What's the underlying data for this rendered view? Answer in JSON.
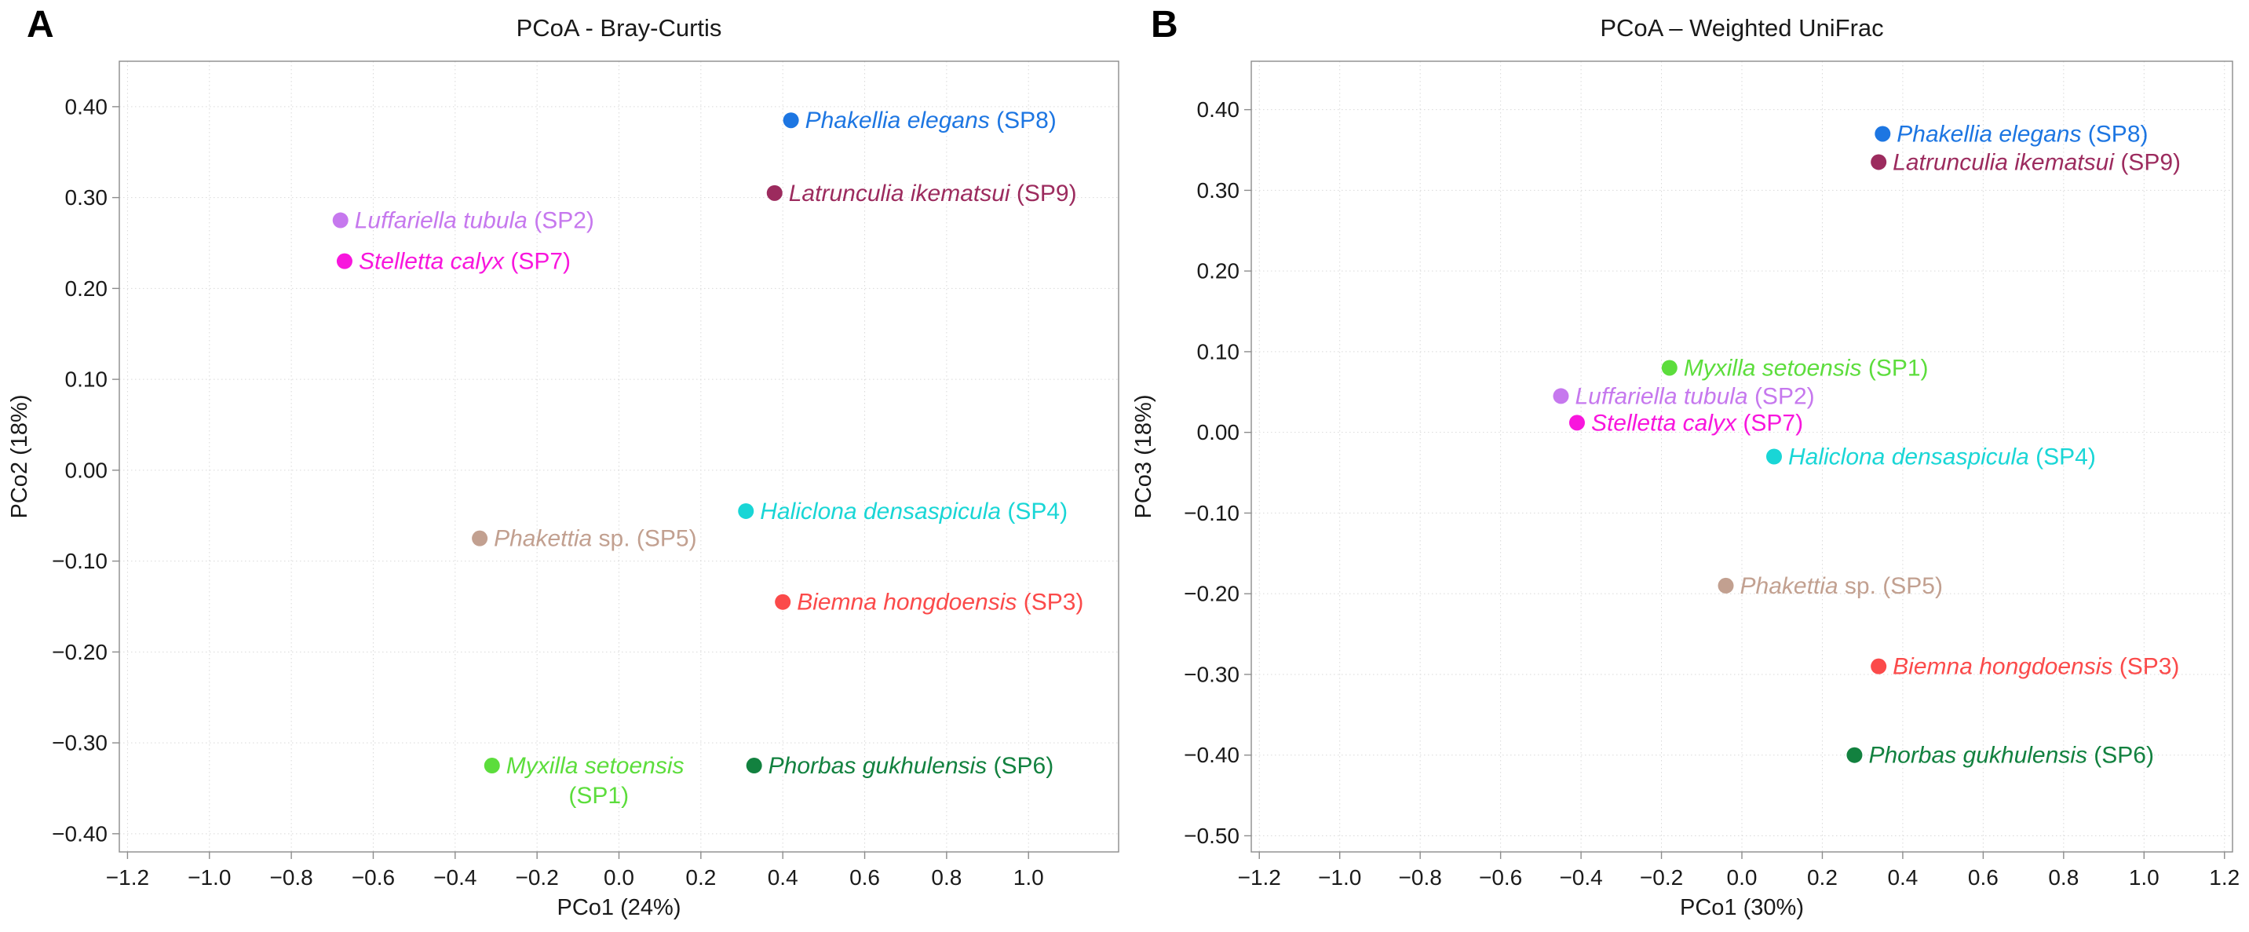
{
  "figure": {
    "panels": [
      {
        "corner_label": "A",
        "title": "PCoA - Bray-Curtis"
      },
      {
        "corner_label": "B",
        "title": "PCoA – Weighted UniFrac"
      }
    ]
  },
  "chart_data": [
    {
      "type": "scatter",
      "panel": "A",
      "title": "PCoA - Bray-Curtis",
      "xlabel": "PCo1 (24%)",
      "ylabel": "PCo2 (18%)",
      "xlim": [
        -1.22,
        1.22
      ],
      "ylim": [
        -0.42,
        0.45
      ],
      "xticks": [
        -1.2,
        -1.0,
        -0.8,
        -0.6,
        -0.4,
        -0.2,
        0.0,
        0.2,
        0.4,
        0.6,
        0.8,
        1.0
      ],
      "xtick_labels": [
        "−1.2",
        "−1.0",
        "−0.8",
        "−0.6",
        "−0.4",
        "−0.2",
        "0.0",
        "0.2",
        "0.4",
        "0.6",
        "0.8",
        "1.0"
      ],
      "yticks": [
        -0.4,
        -0.3,
        -0.2,
        -0.1,
        0.0,
        0.1,
        0.2,
        0.3,
        0.4
      ],
      "ytick_labels": [
        "−0.40",
        "−0.30",
        "−0.20",
        "−0.10",
        "0.00",
        "0.10",
        "0.20",
        "0.30",
        "0.40"
      ],
      "grid": true,
      "legend": "none",
      "points": [
        {
          "label_italic": "Phakellia elegans",
          "label_roman": " (SP8)",
          "x": 0.42,
          "y": 0.385,
          "color": "#1d76e2"
        },
        {
          "label_italic": "Latrunculia ikematsui",
          "label_roman": " (SP9)",
          "x": 0.38,
          "y": 0.305,
          "color": "#9c2b5e"
        },
        {
          "label_italic": "Luffariella tubula",
          "label_roman": " (SP2)",
          "x": -0.68,
          "y": 0.275,
          "color": "#c678ee"
        },
        {
          "label_italic": "Stelletta calyx",
          "label_roman": " (SP7)",
          "x": -0.67,
          "y": 0.23,
          "color": "#f816dd"
        },
        {
          "label_italic": "Haliclona densaspicula",
          "label_roman": " (SP4)",
          "x": 0.31,
          "y": -0.045,
          "color": "#19d6d6"
        },
        {
          "label_italic": "Phakettia",
          "label_roman": " sp. (SP5)",
          "x": -0.34,
          "y": -0.075,
          "color": "#c2a090"
        },
        {
          "label_italic": "Biemna hongdoensis",
          "label_roman": " (SP3)",
          "x": 0.4,
          "y": -0.145,
          "color": "#fb4a4a"
        },
        {
          "label_italic": "Myxilla setoensis",
          "label_roman": "(SP1)",
          "x": -0.31,
          "y": -0.325,
          "color": "#5cdd3c",
          "two_line": true
        },
        {
          "label_italic": "Phorbas gukhulensis",
          "label_roman": " (SP6)",
          "x": 0.33,
          "y": -0.325,
          "color": "#12813f"
        }
      ]
    },
    {
      "type": "scatter",
      "panel": "B",
      "title": "PCoA – Weighted UniFrac",
      "xlabel": "PCo1 (30%)",
      "ylabel": "PCo3 (18%)",
      "xlim": [
        -1.22,
        1.22
      ],
      "ylim": [
        -0.52,
        0.46
      ],
      "xticks": [
        -1.2,
        -1.0,
        -0.8,
        -0.6,
        -0.4,
        -0.2,
        0.0,
        0.2,
        0.4,
        0.6,
        0.8,
        1.0,
        1.2
      ],
      "xtick_labels": [
        "−1.2",
        "−1.0",
        "−0.8",
        "−0.6",
        "−0.4",
        "−0.2",
        "0.0",
        "0.2",
        "0.4",
        "0.6",
        "0.8",
        "1.0",
        "1.2"
      ],
      "yticks": [
        -0.5,
        -0.4,
        -0.3,
        -0.2,
        -0.1,
        0.0,
        0.1,
        0.2,
        0.3,
        0.4
      ],
      "ytick_labels": [
        "−0.50",
        "−0.40",
        "−0.30",
        "−0.20",
        "−0.10",
        "0.00",
        "0.10",
        "0.20",
        "0.30",
        "0.40"
      ],
      "grid": true,
      "legend": "none",
      "points": [
        {
          "label_italic": "Phakellia elegans",
          "label_roman": " (SP8)",
          "x": 0.35,
          "y": 0.37,
          "color": "#1d76e2"
        },
        {
          "label_italic": "Latrunculia ikematsui",
          "label_roman": " (SP9)",
          "x": 0.34,
          "y": 0.335,
          "color": "#9c2b5e"
        },
        {
          "label_italic": "Myxilla setoensis",
          "label_roman": " (SP1)",
          "x": -0.18,
          "y": 0.08,
          "color": "#5cdd3c"
        },
        {
          "label_italic": "Luffariella tubula",
          "label_roman": " (SP2)",
          "x": -0.45,
          "y": 0.045,
          "color": "#c678ee"
        },
        {
          "label_italic": "Stelletta calyx",
          "label_roman": " (SP7)",
          "x": -0.41,
          "y": 0.012,
          "color": "#f816dd"
        },
        {
          "label_italic": "Haliclona densaspicula",
          "label_roman": " (SP4)",
          "x": 0.08,
          "y": -0.03,
          "color": "#19d6d6"
        },
        {
          "label_italic": "Phakettia",
          "label_roman": " sp. (SP5)",
          "x": -0.04,
          "y": -0.19,
          "color": "#c2a090"
        },
        {
          "label_italic": "Biemna hongdoensis",
          "label_roman": " (SP3)",
          "x": 0.34,
          "y": -0.29,
          "color": "#fb4a4a"
        },
        {
          "label_italic": "Phorbas gukhulensis",
          "label_roman": " (SP6)",
          "x": 0.28,
          "y": -0.4,
          "color": "#12813f"
        }
      ]
    }
  ]
}
